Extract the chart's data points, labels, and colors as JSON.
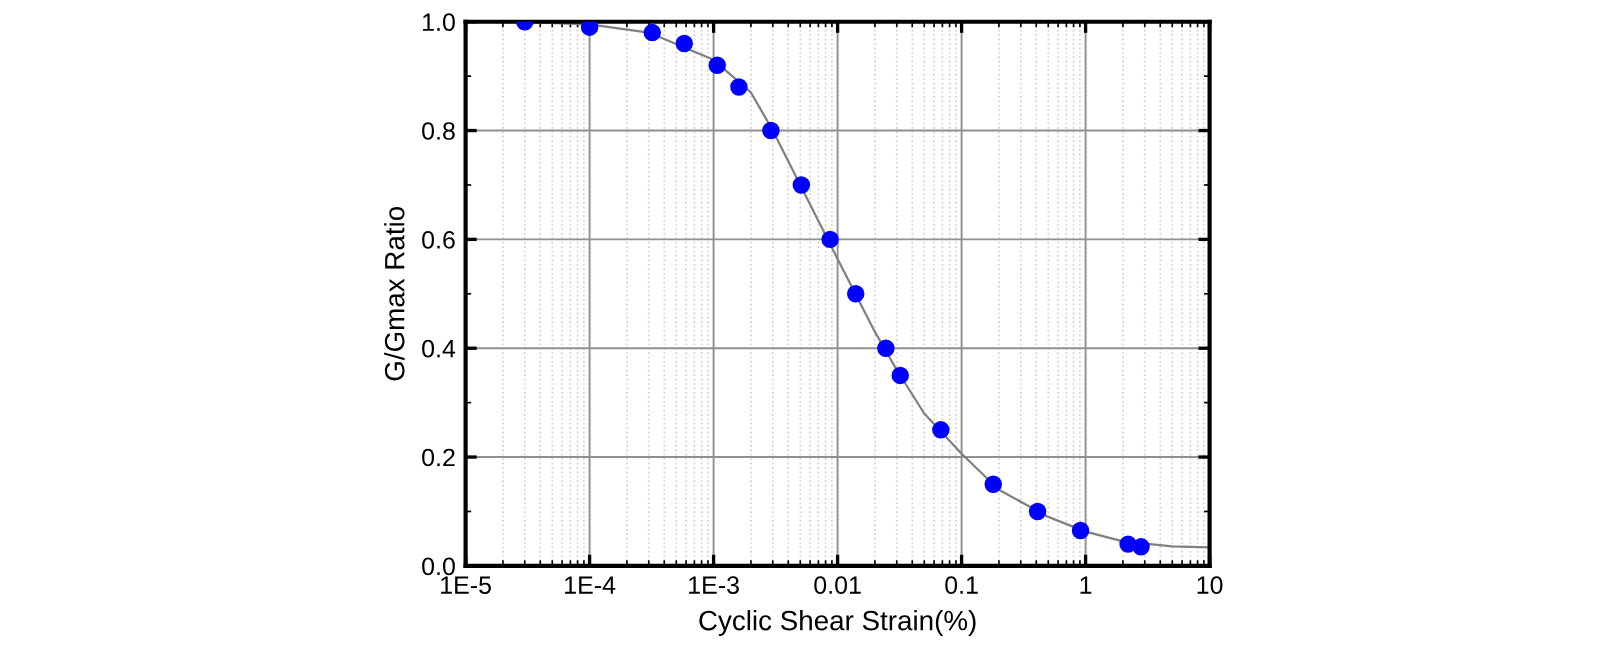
{
  "chart_data": {
    "type": "scatter",
    "xlabel": "Cyclic Shear Strain(%)",
    "ylabel": "G/Gmax Ratio",
    "log": "x",
    "grid": true,
    "marker": "circle",
    "xlim": [
      1e-05,
      10
    ],
    "ylim": [
      0,
      1.0
    ],
    "xticks": [
      {
        "value": 1e-05,
        "label": "1E-5"
      },
      {
        "value": 0.0001,
        "label": "1E-4"
      },
      {
        "value": 0.001,
        "label": "1E-3"
      },
      0.01,
      0.1,
      1,
      10
    ],
    "yticks": [
      {
        "value": 0,
        "label": "0.0"
      },
      0.2,
      0.4,
      0.6,
      0.8,
      {
        "value": 1.0,
        "label": "1.0"
      }
    ],
    "series": [
      {
        "type": "line",
        "color": "#808080",
        "marker": "none",
        "x": [
          1e-05,
          3e-05,
          0.0001,
          0.0003,
          0.001,
          0.002,
          0.003,
          0.005,
          0.01,
          0.02,
          0.03,
          0.05,
          0.1,
          0.2,
          0.5,
          1,
          2,
          5,
          10
        ],
        "values": [
          1.0,
          0.999,
          0.995,
          0.98,
          0.93,
          0.87,
          0.8,
          0.7,
          0.564,
          0.43,
          0.36,
          0.28,
          0.206,
          0.14,
          0.09,
          0.063,
          0.045,
          0.036,
          0.034
        ]
      },
      {
        "color": "#0000ff",
        "x": [
          3e-05,
          0.0001,
          0.00032,
          0.00058,
          0.00107,
          0.0016,
          0.0029,
          0.0051,
          0.0087,
          0.014,
          0.0245,
          0.032,
          0.068,
          0.18,
          0.41,
          0.91,
          2.2,
          2.8
        ],
        "values": [
          1.0,
          0.99,
          0.98,
          0.96,
          0.92,
          0.88,
          0.8,
          0.7,
          0.6,
          0.5,
          0.4,
          0.35,
          0.25,
          0.15,
          0.1,
          0.065,
          0.04,
          0.035
        ]
      }
    ]
  }
}
